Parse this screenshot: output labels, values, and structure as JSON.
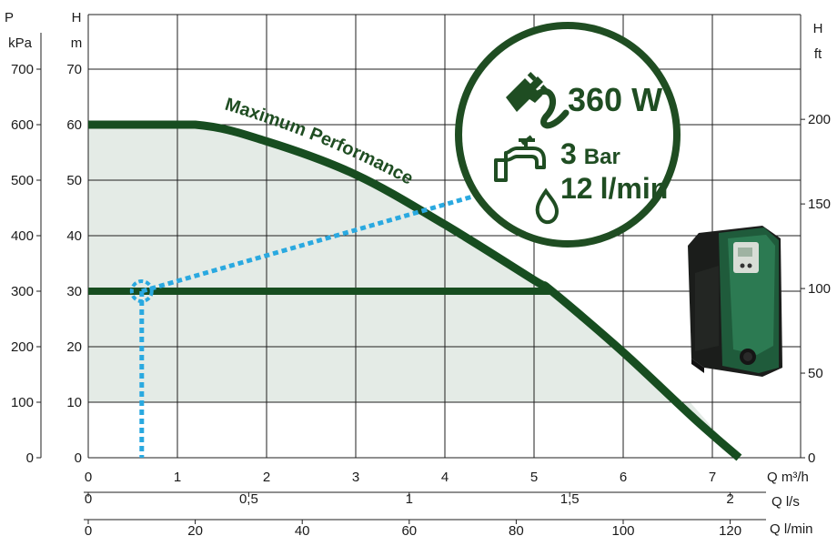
{
  "colors": {
    "curve": "#174d20",
    "operating": "#2aa9e0",
    "fill": "#e4ebe6",
    "grid": "#1f1f1f",
    "badge": "#1f4d22"
  },
  "axes": {
    "p_title": "P",
    "p_unit": "kPa",
    "h_title": "H",
    "h_unit": "m",
    "hft_title": "H",
    "hft_unit": "ft",
    "q_m3h_label": "Q m³/h",
    "q_ls_label": "Q l/s",
    "q_lmin_label": "Q l/min"
  },
  "badge": {
    "power": "360 W",
    "pressure": "3 Bar",
    "flow": "12 l/min",
    "plug_icon": "plug-icon",
    "tap_icon": "tap-icon",
    "drop_icon": "water-drop-icon"
  },
  "product_image": "pump-unit",
  "chart_data": {
    "type": "line",
    "x_unit": "m³/h",
    "y_unit": "m",
    "xlim": [
      0,
      8
    ],
    "ylim": [
      0,
      70
    ],
    "grid": true,
    "secondary_axes": {
      "left_kPa_ticks": [
        0,
        100,
        200,
        300,
        400,
        500,
        600,
        700
      ],
      "right_ft_ticks": [
        0,
        50,
        100,
        150,
        200
      ],
      "bottom_ls_ticks": [
        "0",
        "0,5",
        "1",
        "1,5",
        "2"
      ],
      "bottom_lmin_ticks": [
        0,
        20,
        40,
        60,
        80,
        100,
        120
      ]
    },
    "y_ticks": [
      0,
      10,
      20,
      30,
      40,
      50,
      60,
      70
    ],
    "x_ticks": [
      0,
      1,
      2,
      3,
      4,
      5,
      6,
      7
    ],
    "series": [
      {
        "name": "Maximum Performance",
        "x": [
          0,
          1.2,
          2.0,
          3.0,
          4.0,
          5.0,
          5.2,
          6.0,
          6.8,
          7.3
        ],
        "y": [
          60,
          60,
          57,
          51,
          42,
          32,
          30,
          19,
          7,
          0
        ]
      },
      {
        "name": "",
        "x": [
          0,
          5.2
        ],
        "y": [
          30,
          30
        ]
      }
    ],
    "operating_point": {
      "x": 0.6,
      "y": 30
    }
  }
}
